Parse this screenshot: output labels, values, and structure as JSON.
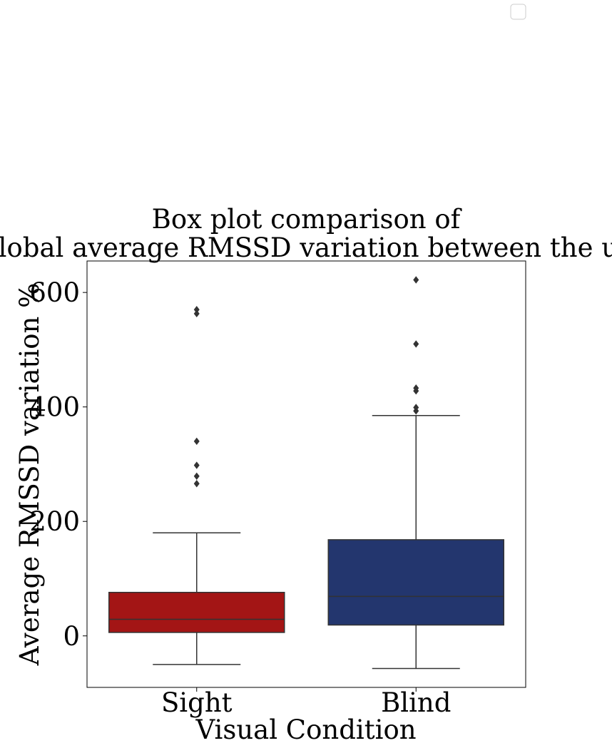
{
  "chart_data": {
    "type": "box",
    "title": [
      "Box plot comparison of",
      "the global average RMSSD variation between the users."
    ],
    "xlabel": "Visual Condition",
    "ylabel": "Average RMSSD variation %",
    "ylim": [
      -90,
      655
    ],
    "yticks": [
      0,
      200,
      400,
      600
    ],
    "categories": [
      "Sight",
      "Blind"
    ],
    "colors": {
      "Sight": "#a31515",
      "Blind": "#23366e",
      "edge": "#333333"
    },
    "legend": {
      "placement": "top-right",
      "entries": []
    },
    "grid": false,
    "series": [
      {
        "category": "Sight",
        "whisker_low": -50,
        "q1": 6,
        "median": 29,
        "q3": 76,
        "whisker_high": 180,
        "outliers": [
          266,
          279,
          298,
          340,
          563,
          570
        ]
      },
      {
        "category": "Blind",
        "whisker_low": -57,
        "q1": 19,
        "median": 69,
        "q3": 168,
        "whisker_high": 385,
        "outliers": [
          393,
          399,
          428,
          433,
          510,
          622
        ]
      }
    ]
  }
}
